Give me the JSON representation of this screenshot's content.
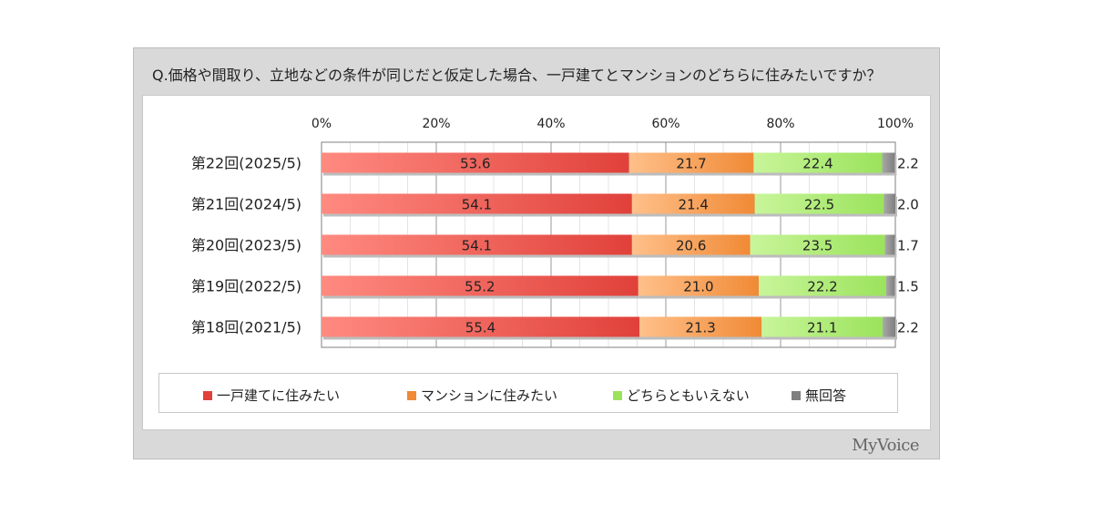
{
  "question": "Q.価格や間取り、立地などの条件が同じだと仮定した場合、一戸建てとマンションのどちらに住みたいですか？",
  "brand": "MyVoice",
  "colors": {
    "series": [
      "#e0413a",
      "#f08a36",
      "#9be35c",
      "#7f7f7f"
    ],
    "series_light": [
      "#ff8a80",
      "#ffc08a",
      "#c8f59a",
      "#a8a8a8"
    ]
  },
  "chart_data": {
    "type": "bar",
    "orientation": "horizontal",
    "stacked": true,
    "xlim": [
      0,
      100
    ],
    "x_ticks": [
      "0%",
      "20%",
      "40%",
      "60%",
      "80%",
      "100%"
    ],
    "grid": true,
    "legend_position": "bottom",
    "categories": [
      "第22回(2025/5)",
      "第21回(2024/5)",
      "第20回(2023/5)",
      "第19回(2022/5)",
      "第18回(2021/5)"
    ],
    "series": [
      {
        "name": "一戸建てに住みたい",
        "values": [
          53.6,
          54.1,
          54.1,
          55.2,
          55.4
        ]
      },
      {
        "name": "マンションに住みたい",
        "values": [
          21.7,
          21.4,
          20.6,
          21.0,
          21.3
        ]
      },
      {
        "name": "どちらともいえない",
        "values": [
          22.4,
          22.5,
          23.5,
          22.2,
          21.1
        ]
      },
      {
        "name": "無回答",
        "values": [
          2.2,
          2.0,
          1.7,
          1.5,
          2.2
        ]
      }
    ]
  }
}
